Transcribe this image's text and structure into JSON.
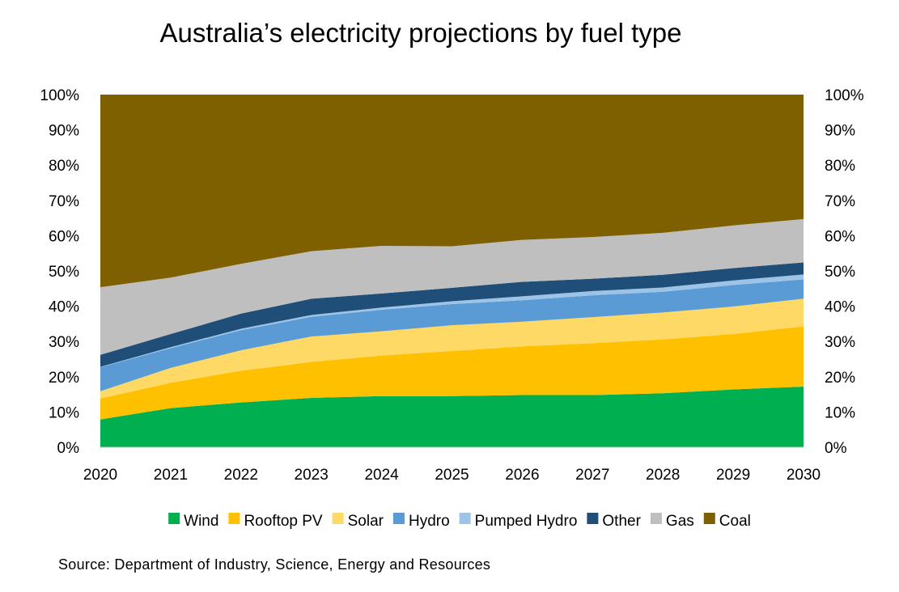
{
  "chart_data": {
    "type": "area",
    "stacked": true,
    "normalized": true,
    "title": "Australia’s electricity projections by fuel type",
    "x": [
      "2020",
      "2021",
      "2022",
      "2023",
      "2024",
      "2025",
      "2026",
      "2027",
      "2028",
      "2029",
      "2030"
    ],
    "ylim": [
      0,
      100
    ],
    "y_ticks": [
      "0%",
      "10%",
      "20%",
      "30%",
      "40%",
      "50%",
      "60%",
      "70%",
      "80%",
      "90%",
      "100%"
    ],
    "y_axis_both_sides": true,
    "grid": false,
    "legend_position": "bottom",
    "series": [
      {
        "name": "Wind",
        "color": "#00b050",
        "values": [
          7.9,
          11.1,
          12.7,
          14.0,
          14.5,
          14.5,
          14.8,
          14.8,
          15.3,
          16.4,
          17.2
        ]
      },
      {
        "name": "Rooftop PV",
        "color": "#ffc000",
        "values": [
          5.9,
          7.2,
          9.0,
          10.2,
          11.5,
          12.8,
          13.8,
          14.7,
          15.3,
          15.7,
          17.1
        ]
      },
      {
        "name": "Solar",
        "color": "#ffd966",
        "values": [
          2.1,
          4.2,
          5.8,
          7.2,
          6.9,
          7.3,
          7.0,
          7.4,
          7.6,
          7.8,
          7.8
        ]
      },
      {
        "name": "Hydro",
        "color": "#5b9bd5",
        "values": [
          6.8,
          5.6,
          5.7,
          5.6,
          6.1,
          6.0,
          6.1,
          6.2,
          5.9,
          6.1,
          5.5
        ]
      },
      {
        "name": "Pumped Hydro",
        "color": "#9dc3e6",
        "values": [
          0.1,
          0.3,
          0.4,
          0.5,
          0.6,
          0.8,
          1.1,
          1.2,
          1.2,
          1.3,
          1.4
        ]
      },
      {
        "name": "Other",
        "color": "#1f4e79",
        "values": [
          3.4,
          3.7,
          4.3,
          4.6,
          4.0,
          3.8,
          4.1,
          3.5,
          3.6,
          3.5,
          3.4
        ]
      },
      {
        "name": "Gas",
        "color": "#bfbfbf",
        "values": [
          19.2,
          16.0,
          14.1,
          13.5,
          13.5,
          11.8,
          11.9,
          11.8,
          11.9,
          12.1,
          12.3
        ]
      },
      {
        "name": "Coal",
        "color": "#7f6000",
        "values": [
          54.6,
          51.9,
          48.0,
          44.4,
          42.9,
          43.0,
          41.2,
          40.4,
          39.2,
          37.1,
          35.3
        ]
      }
    ]
  },
  "source": "Source:  Department of Industry, Science,  Energy and Resources"
}
